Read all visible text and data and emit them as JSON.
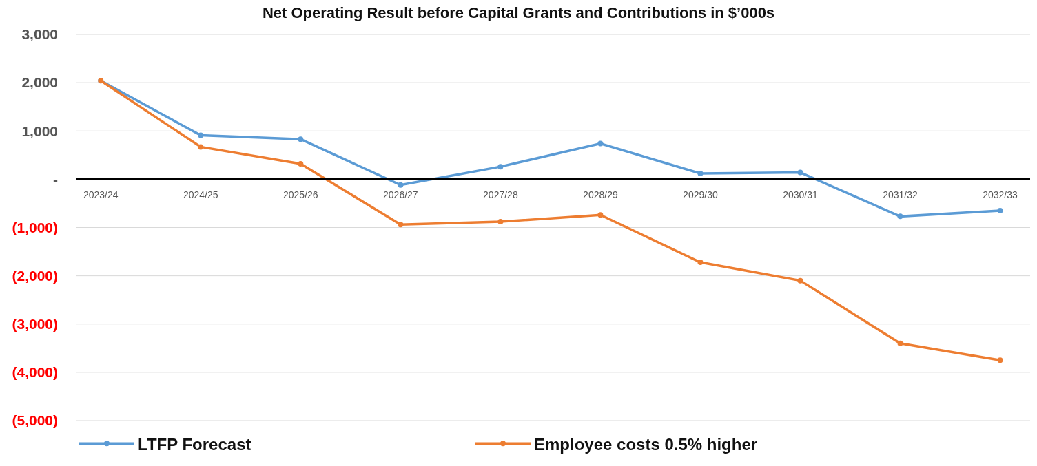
{
  "chart_data": {
    "type": "line",
    "title": "Net Operating Result before Capital Grants and Contributions in $’000s",
    "categories": [
      "2023/24",
      "2024/25",
      "2025/26",
      "2026/27",
      "2027/28",
      "2028/29",
      "2029/30",
      "2030/31",
      "2031/32",
      "2032/33"
    ],
    "series": [
      {
        "name": "LTFP Forecast",
        "color": "#5b9bd5",
        "values": [
          2040,
          910,
          830,
          -120,
          260,
          740,
          120,
          140,
          -770,
          -650
        ]
      },
      {
        "name": "Employee costs 0.5% higher",
        "color": "#ed7d31",
        "values": [
          2040,
          670,
          320,
          -940,
          -880,
          -740,
          -1720,
          -2100,
          -3400,
          -3750
        ]
      }
    ],
    "ylim": [
      -5000,
      3000
    ],
    "yticks": [
      {
        "value": 3000,
        "label": "3,000"
      },
      {
        "value": 2000,
        "label": "2,000"
      },
      {
        "value": 1000,
        "label": "1,000"
      },
      {
        "value": 0,
        "label": "-"
      },
      {
        "value": -1000,
        "label": "(1,000)"
      },
      {
        "value": -2000,
        "label": "(2,000)"
      },
      {
        "value": -3000,
        "label": "(3,000)"
      },
      {
        "value": -4000,
        "label": "(4,000)"
      },
      {
        "value": -5000,
        "label": "(5,000)"
      }
    ],
    "grid": "y",
    "legend": "bottom",
    "marker": "circle",
    "line_style": "solid"
  }
}
